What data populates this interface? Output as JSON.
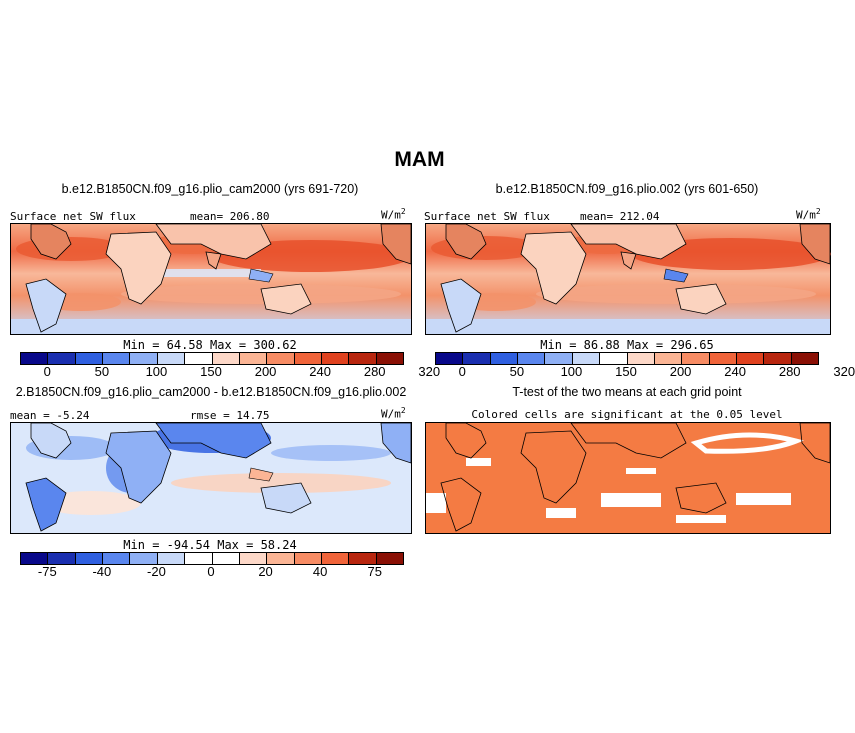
{
  "figure_title": "MAM",
  "panels": {
    "top_left": {
      "title": "b.e12.B1850CN.f09_g16.plio_cam2000 (yrs 691-720)",
      "field": "Surface net SW flux",
      "mean": "mean= 206.80",
      "units": "W/m",
      "units_sup": "2",
      "minmax": "Min =  64.58 Max = 300.62",
      "colorbar_ticks": [
        "0",
        "50",
        "100",
        "150",
        "200",
        "240",
        "280",
        "320"
      ]
    },
    "top_right": {
      "title": "b.e12.B1850CN.f09_g16.plio.002 (yrs 601-650)",
      "field": "Surface net SW flux",
      "mean": "mean= 212.04",
      "units": "W/m",
      "units_sup": "2",
      "minmax": "Min =  86.88 Max = 296.65",
      "colorbar_ticks": [
        "0",
        "50",
        "100",
        "150",
        "200",
        "240",
        "280",
        "320"
      ]
    },
    "bottom_left": {
      "title": "2.B1850CN.f09_g16.plio_cam2000 - b.e12.B1850CN.f09_g16.plio.002",
      "mean": "mean =  -5.24",
      "rmse": "rmse =  14.75",
      "units": "W/m",
      "units_sup": "2",
      "minmax": "Min = -94.54 Max =  58.24",
      "colorbar_ticks": [
        "-75",
        "-40",
        "-20",
        "0",
        "20",
        "40",
        "75"
      ]
    },
    "bottom_right": {
      "title": "T-test of the two means at each grid point",
      "subtitle": "Colored cells are significant at the 0.05 level"
    }
  },
  "colors": {
    "abs_scale": [
      "#08088a",
      "#1a2fb0",
      "#2f5fe0",
      "#5a86ee",
      "#8fb0f5",
      "#c8d9f8",
      "#ffffff",
      "#fdd8c8",
      "#fbb595",
      "#f78c64",
      "#f0643a",
      "#e0421f",
      "#b8260f",
      "#8a1005"
    ],
    "diff_scale": [
      "#08088a",
      "#1a2fb0",
      "#2f5fe0",
      "#5a86ee",
      "#8fb0f5",
      "#c8d9f8",
      "#ffffff",
      "#ffffff",
      "#fdd8c8",
      "#fbb595",
      "#f78c64",
      "#f0643a",
      "#b8260f",
      "#8a1005"
    ],
    "ttest_fill": "#f47b43",
    "ocean_mid": "#f4a585",
    "ocean_low": "#fbd3bf"
  }
}
